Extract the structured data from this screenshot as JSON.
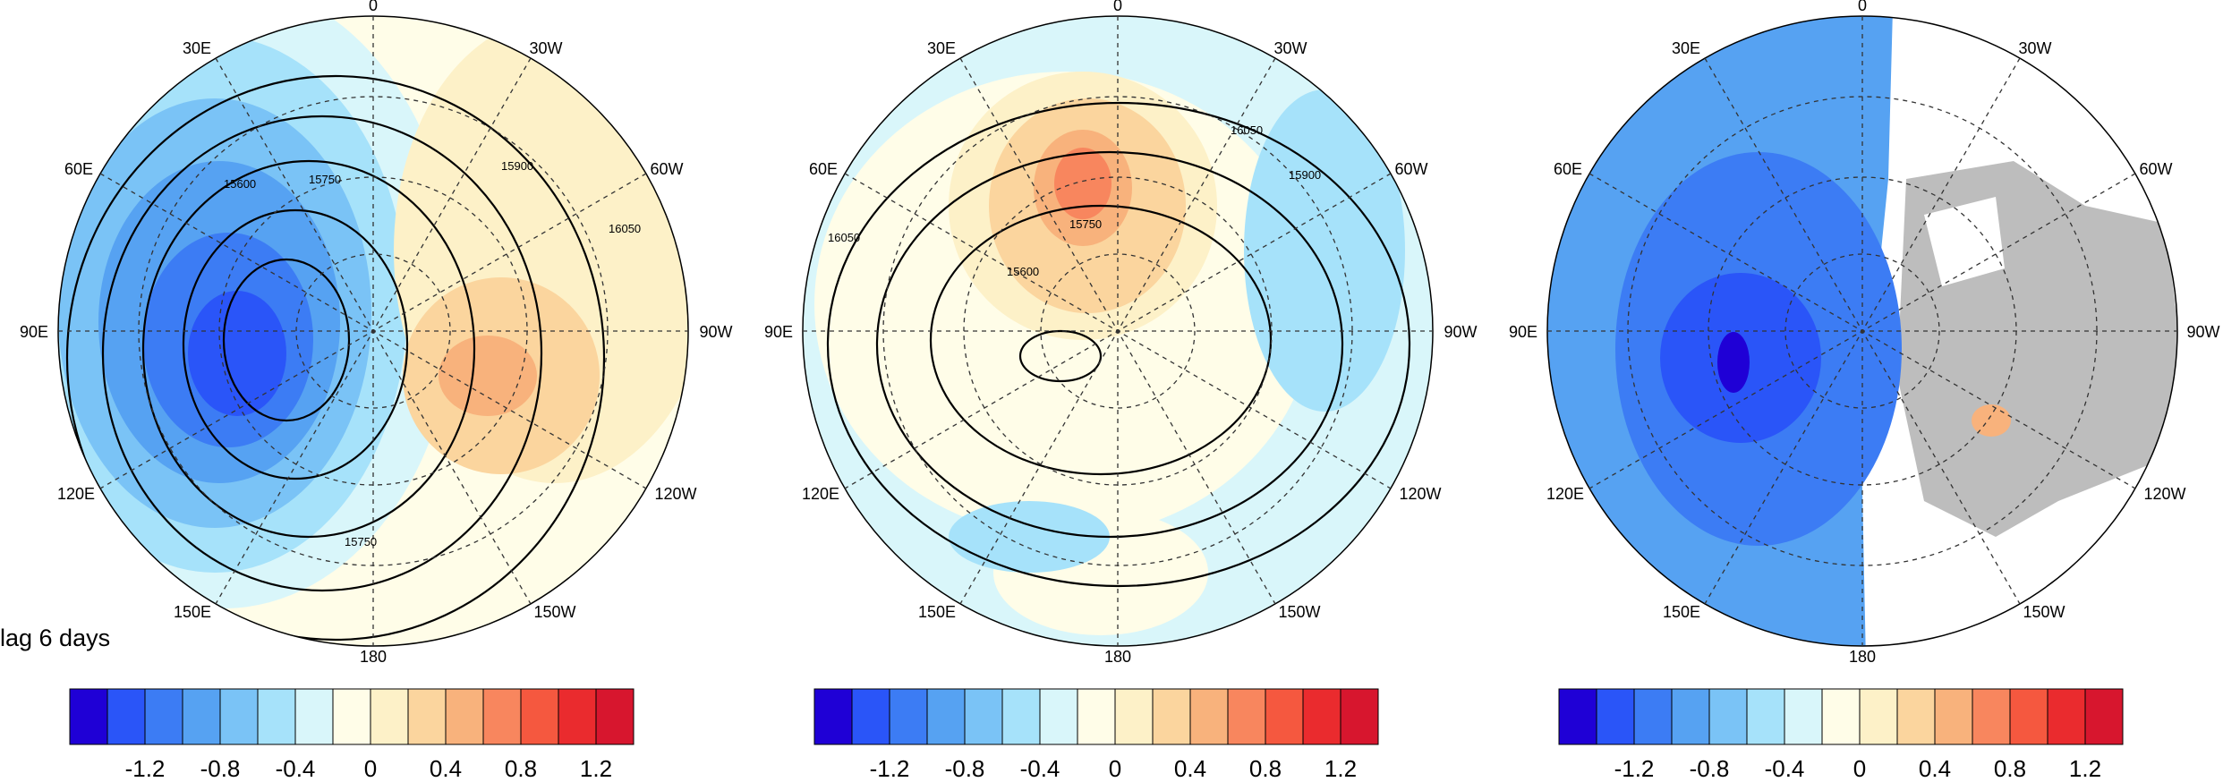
{
  "caption": "lag 6 days",
  "palette": [
    "#1f00d6",
    "#2a55f8",
    "#3c7cf4",
    "#56a2f2",
    "#7ac3f6",
    "#a6e2fa",
    "#d9f6fa",
    "#fffde8",
    "#fdf1c8",
    "#fbd59e",
    "#f8b27c",
    "#f8865e",
    "#f5583f",
    "#ea2b2e",
    "#d7162e"
  ],
  "colorbar": {
    "ticks": [
      "-1.2",
      "-0.8",
      "-0.4",
      "0",
      "0.4",
      "0.8",
      "1.2"
    ]
  },
  "lon_labels": {
    "top": "0",
    "bottom": "180",
    "left": "90E",
    "right": "90W",
    "upper_left_outer": "30E",
    "upper_left": "60E",
    "upper_right_outer": "30W",
    "upper_right": "60W",
    "lower_left": "120E",
    "lower_left_outer": "150E",
    "lower_right": "120W",
    "lower_right_outer": "150W"
  },
  "panels": [
    {
      "contour_labels": [
        "15600",
        "15750",
        "15900",
        "16050",
        "15750"
      ]
    },
    {
      "contour_labels": [
        "16050",
        "15900",
        "15750",
        "15600",
        "16050"
      ]
    },
    {
      "contour_labels": []
    }
  ],
  "colors": {
    "land_masked": "#bdbdbd",
    "coast": "#444444"
  }
}
